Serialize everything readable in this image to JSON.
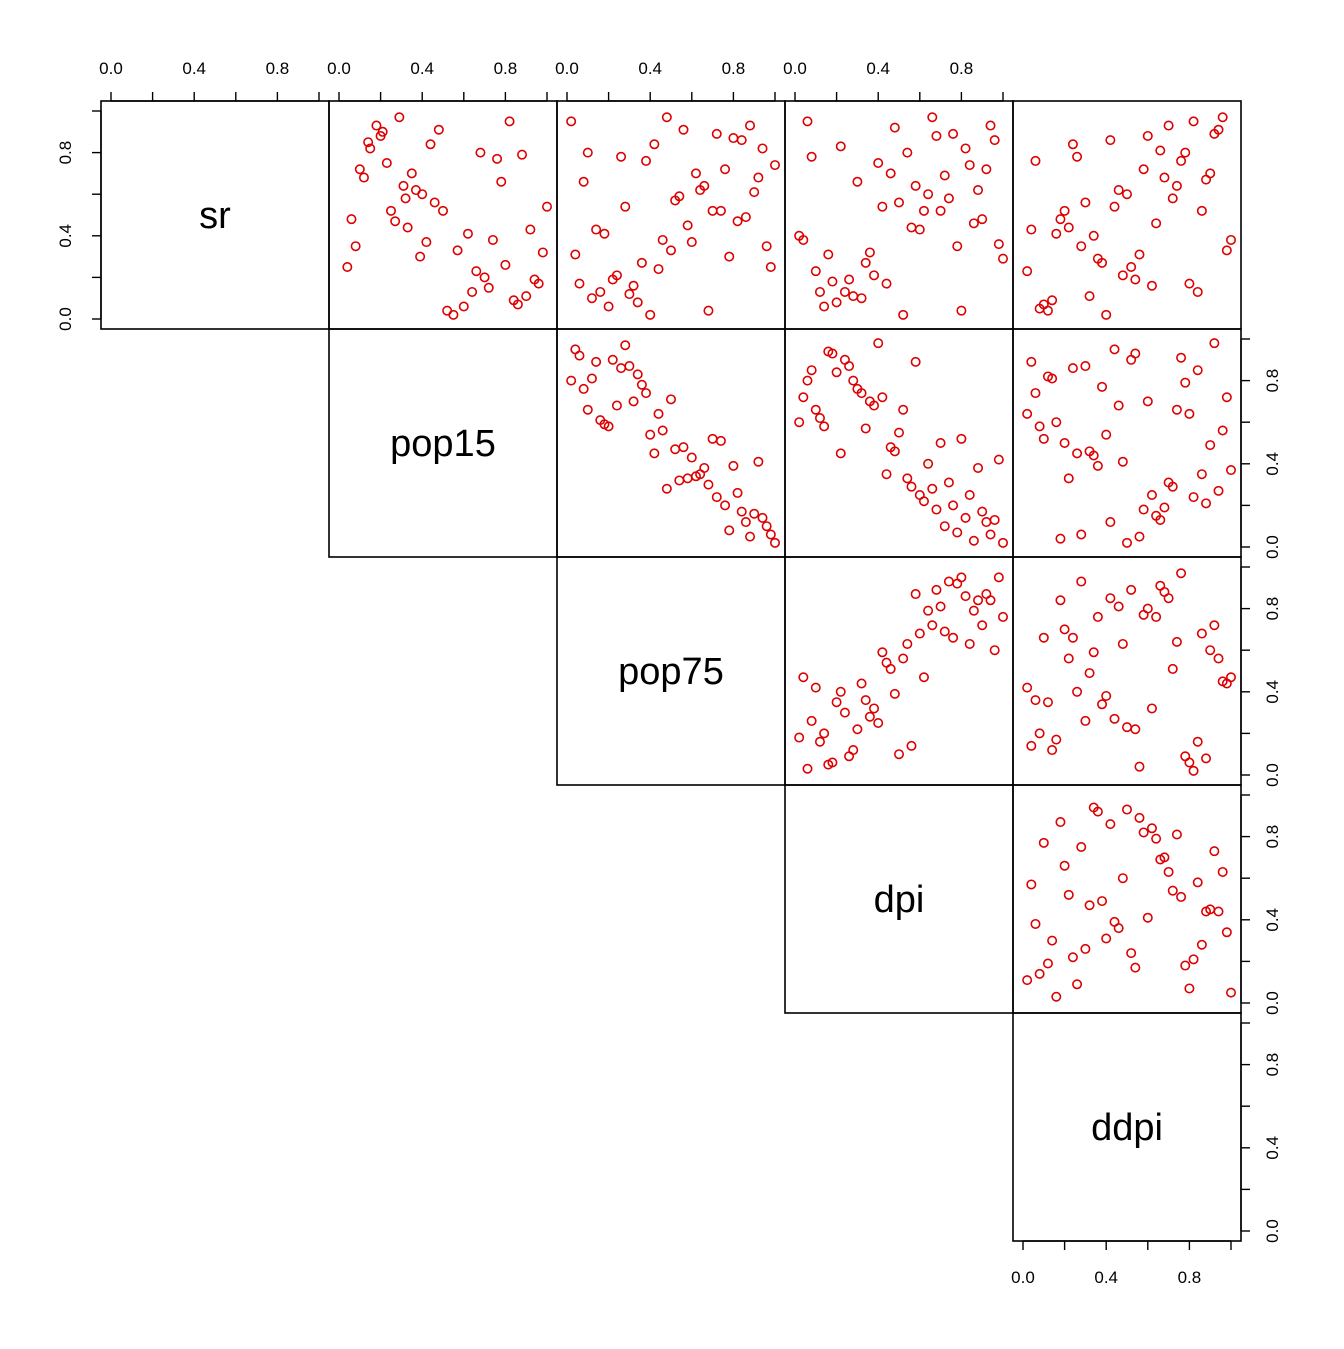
{
  "chart_data": {
    "type": "scatter",
    "kind": "pairs-matrix-upper",
    "variables": [
      "sr",
      "pop15",
      "pop75",
      "dpi",
      "ddpi"
    ],
    "axis_range": [
      0,
      1
    ],
    "tick_values": [
      0.0,
      0.4,
      0.8
    ],
    "tick_labels": [
      "0.0",
      "0.4",
      "0.8"
    ],
    "grid": false,
    "legend": "none",
    "point_color": "#dd0000",
    "panels": [
      {
        "x_var": "pop15",
        "y_var": "sr",
        "x": [
          0.04,
          0.06,
          0.08,
          0.1,
          0.12,
          0.14,
          0.15,
          0.18,
          0.2,
          0.21,
          0.23,
          0.25,
          0.27,
          0.29,
          0.31,
          0.32,
          0.33,
          0.35,
          0.37,
          0.39,
          0.4,
          0.42,
          0.44,
          0.46,
          0.48,
          0.5,
          0.52,
          0.55,
          0.57,
          0.6,
          0.62,
          0.64,
          0.66,
          0.68,
          0.7,
          0.72,
          0.74,
          0.76,
          0.78,
          0.8,
          0.82,
          0.84,
          0.86,
          0.88,
          0.9,
          0.92,
          0.94,
          0.96,
          0.98,
          1.0
        ],
        "y": [
          0.25,
          0.48,
          0.35,
          0.72,
          0.68,
          0.85,
          0.82,
          0.93,
          0.88,
          0.9,
          0.75,
          0.52,
          0.47,
          0.97,
          0.64,
          0.58,
          0.44,
          0.7,
          0.62,
          0.3,
          0.6,
          0.37,
          0.84,
          0.56,
          0.91,
          0.52,
          0.04,
          0.02,
          0.33,
          0.06,
          0.41,
          0.13,
          0.23,
          0.8,
          0.2,
          0.15,
          0.38,
          0.77,
          0.66,
          0.26,
          0.95,
          0.09,
          0.07,
          0.79,
          0.11,
          0.43,
          0.19,
          0.17,
          0.32,
          0.54
        ]
      },
      {
        "x_var": "pop75",
        "y_var": "sr",
        "x": [
          0.02,
          0.04,
          0.06,
          0.08,
          0.1,
          0.12,
          0.14,
          0.16,
          0.18,
          0.2,
          0.22,
          0.24,
          0.26,
          0.28,
          0.3,
          0.32,
          0.34,
          0.36,
          0.38,
          0.4,
          0.42,
          0.44,
          0.46,
          0.48,
          0.5,
          0.52,
          0.54,
          0.56,
          0.58,
          0.6,
          0.62,
          0.64,
          0.66,
          0.68,
          0.7,
          0.72,
          0.74,
          0.76,
          0.78,
          0.8,
          0.82,
          0.84,
          0.86,
          0.88,
          0.9,
          0.92,
          0.94,
          0.96,
          0.98,
          1.0
        ],
        "y": [
          0.95,
          0.31,
          0.17,
          0.66,
          0.8,
          0.1,
          0.43,
          0.13,
          0.41,
          0.06,
          0.19,
          0.21,
          0.78,
          0.54,
          0.12,
          0.16,
          0.08,
          0.27,
          0.76,
          0.02,
          0.84,
          0.24,
          0.38,
          0.97,
          0.33,
          0.57,
          0.59,
          0.91,
          0.45,
          0.37,
          0.7,
          0.62,
          0.64,
          0.04,
          0.52,
          0.89,
          0.52,
          0.72,
          0.3,
          0.87,
          0.47,
          0.86,
          0.49,
          0.93,
          0.61,
          0.68,
          0.82,
          0.35,
          0.25,
          0.74
        ]
      },
      {
        "x_var": "dpi",
        "y_var": "sr",
        "x": [
          0.02,
          0.04,
          0.06,
          0.08,
          0.1,
          0.12,
          0.14,
          0.16,
          0.18,
          0.2,
          0.22,
          0.24,
          0.26,
          0.28,
          0.3,
          0.32,
          0.34,
          0.36,
          0.38,
          0.4,
          0.42,
          0.44,
          0.46,
          0.48,
          0.5,
          0.52,
          0.54,
          0.56,
          0.58,
          0.6,
          0.62,
          0.64,
          0.66,
          0.68,
          0.7,
          0.72,
          0.74,
          0.76,
          0.78,
          0.8,
          0.82,
          0.84,
          0.86,
          0.88,
          0.9,
          0.92,
          0.94,
          0.96,
          0.98,
          1.0
        ],
        "y": [
          0.4,
          0.38,
          0.95,
          0.78,
          0.23,
          0.13,
          0.06,
          0.31,
          0.18,
          0.08,
          0.83,
          0.13,
          0.19,
          0.11,
          0.66,
          0.1,
          0.27,
          0.32,
          0.21,
          0.75,
          0.54,
          0.17,
          0.7,
          0.92,
          0.56,
          0.02,
          0.8,
          0.44,
          0.64,
          0.43,
          0.52,
          0.6,
          0.97,
          0.88,
          0.52,
          0.69,
          0.58,
          0.89,
          0.35,
          0.04,
          0.82,
          0.74,
          0.46,
          0.62,
          0.48,
          0.72,
          0.93,
          0.86,
          0.36,
          0.29
        ]
      },
      {
        "x_var": "ddpi",
        "y_var": "sr",
        "x": [
          0.02,
          0.04,
          0.06,
          0.08,
          0.1,
          0.12,
          0.14,
          0.16,
          0.18,
          0.2,
          0.22,
          0.24,
          0.26,
          0.28,
          0.3,
          0.32,
          0.34,
          0.36,
          0.38,
          0.4,
          0.42,
          0.44,
          0.46,
          0.48,
          0.5,
          0.52,
          0.54,
          0.56,
          0.58,
          0.6,
          0.62,
          0.64,
          0.66,
          0.68,
          0.7,
          0.72,
          0.74,
          0.76,
          0.78,
          0.8,
          0.82,
          0.84,
          0.86,
          0.88,
          0.9,
          0.92,
          0.94,
          0.96,
          0.98,
          1.0
        ],
        "y": [
          0.23,
          0.43,
          0.76,
          0.05,
          0.07,
          0.04,
          0.09,
          0.41,
          0.48,
          0.52,
          0.44,
          0.84,
          0.78,
          0.35,
          0.56,
          0.11,
          0.4,
          0.29,
          0.27,
          0.02,
          0.86,
          0.54,
          0.62,
          0.21,
          0.6,
          0.25,
          0.19,
          0.31,
          0.72,
          0.88,
          0.16,
          0.46,
          0.81,
          0.68,
          0.93,
          0.58,
          0.64,
          0.76,
          0.8,
          0.17,
          0.95,
          0.13,
          0.52,
          0.67,
          0.7,
          0.89,
          0.91,
          0.97,
          0.33,
          0.38
        ]
      },
      {
        "x_var": "pop75",
        "y_var": "pop15",
        "x": [
          0.02,
          0.04,
          0.06,
          0.08,
          0.1,
          0.12,
          0.14,
          0.16,
          0.18,
          0.2,
          0.22,
          0.24,
          0.26,
          0.28,
          0.3,
          0.32,
          0.34,
          0.36,
          0.38,
          0.4,
          0.42,
          0.44,
          0.46,
          0.48,
          0.5,
          0.52,
          0.54,
          0.56,
          0.58,
          0.6,
          0.62,
          0.64,
          0.66,
          0.68,
          0.7,
          0.72,
          0.74,
          0.76,
          0.78,
          0.8,
          0.82,
          0.84,
          0.86,
          0.88,
          0.9,
          0.92,
          0.94,
          0.96,
          0.98,
          1.0
        ],
        "y": [
          0.8,
          0.95,
          0.92,
          0.76,
          0.66,
          0.81,
          0.89,
          0.61,
          0.59,
          0.58,
          0.9,
          0.68,
          0.86,
          0.97,
          0.87,
          0.7,
          0.83,
          0.78,
          0.74,
          0.54,
          0.45,
          0.64,
          0.56,
          0.28,
          0.71,
          0.47,
          0.32,
          0.48,
          0.33,
          0.43,
          0.34,
          0.35,
          0.38,
          0.3,
          0.52,
          0.24,
          0.51,
          0.2,
          0.08,
          0.39,
          0.26,
          0.17,
          0.12,
          0.05,
          0.16,
          0.41,
          0.14,
          0.1,
          0.06,
          0.02
        ]
      },
      {
        "x_var": "dpi",
        "y_var": "pop15",
        "x": [
          0.02,
          0.04,
          0.06,
          0.08,
          0.1,
          0.12,
          0.14,
          0.16,
          0.18,
          0.2,
          0.22,
          0.24,
          0.26,
          0.28,
          0.3,
          0.32,
          0.34,
          0.36,
          0.38,
          0.4,
          0.42,
          0.44,
          0.46,
          0.48,
          0.5,
          0.52,
          0.54,
          0.56,
          0.58,
          0.6,
          0.62,
          0.64,
          0.66,
          0.68,
          0.7,
          0.72,
          0.74,
          0.76,
          0.78,
          0.8,
          0.82,
          0.84,
          0.86,
          0.88,
          0.9,
          0.92,
          0.94,
          0.96,
          0.98,
          1.0
        ],
        "y": [
          0.6,
          0.72,
          0.8,
          0.85,
          0.66,
          0.62,
          0.58,
          0.94,
          0.93,
          0.84,
          0.45,
          0.9,
          0.87,
          0.8,
          0.76,
          0.74,
          0.57,
          0.7,
          0.68,
          0.98,
          0.72,
          0.35,
          0.48,
          0.46,
          0.55,
          0.66,
          0.33,
          0.29,
          0.89,
          0.25,
          0.22,
          0.4,
          0.28,
          0.18,
          0.5,
          0.1,
          0.31,
          0.2,
          0.07,
          0.52,
          0.14,
          0.25,
          0.03,
          0.38,
          0.17,
          0.12,
          0.06,
          0.13,
          0.42,
          0.02
        ]
      },
      {
        "x_var": "ddpi",
        "y_var": "pop15",
        "x": [
          0.02,
          0.04,
          0.06,
          0.08,
          0.1,
          0.12,
          0.14,
          0.16,
          0.18,
          0.2,
          0.22,
          0.24,
          0.26,
          0.28,
          0.3,
          0.32,
          0.34,
          0.36,
          0.38,
          0.4,
          0.42,
          0.44,
          0.46,
          0.48,
          0.5,
          0.52,
          0.54,
          0.56,
          0.58,
          0.6,
          0.62,
          0.64,
          0.66,
          0.68,
          0.7,
          0.72,
          0.74,
          0.76,
          0.78,
          0.8,
          0.82,
          0.84,
          0.86,
          0.88,
          0.9,
          0.92,
          0.94,
          0.96,
          0.98,
          1.0
        ],
        "y": [
          0.64,
          0.89,
          0.74,
          0.58,
          0.52,
          0.82,
          0.81,
          0.6,
          0.04,
          0.5,
          0.33,
          0.86,
          0.45,
          0.06,
          0.87,
          0.46,
          0.44,
          0.39,
          0.77,
          0.54,
          0.12,
          0.95,
          0.68,
          0.41,
          0.02,
          0.9,
          0.93,
          0.05,
          0.18,
          0.7,
          0.25,
          0.15,
          0.13,
          0.19,
          0.31,
          0.29,
          0.66,
          0.91,
          0.79,
          0.64,
          0.24,
          0.85,
          0.35,
          0.21,
          0.49,
          0.98,
          0.27,
          0.56,
          0.72,
          0.37
        ]
      },
      {
        "x_var": "dpi",
        "y_var": "pop75",
        "x": [
          0.02,
          0.04,
          0.06,
          0.08,
          0.1,
          0.12,
          0.14,
          0.16,
          0.18,
          0.2,
          0.22,
          0.24,
          0.26,
          0.28,
          0.3,
          0.32,
          0.34,
          0.36,
          0.38,
          0.4,
          0.42,
          0.44,
          0.46,
          0.48,
          0.5,
          0.52,
          0.54,
          0.56,
          0.58,
          0.6,
          0.62,
          0.64,
          0.66,
          0.68,
          0.7,
          0.72,
          0.74,
          0.76,
          0.78,
          0.8,
          0.82,
          0.84,
          0.86,
          0.88,
          0.9,
          0.92,
          0.94,
          0.96,
          0.98,
          1.0
        ],
        "y": [
          0.18,
          0.47,
          0.03,
          0.26,
          0.42,
          0.16,
          0.2,
          0.05,
          0.06,
          0.35,
          0.4,
          0.3,
          0.09,
          0.12,
          0.22,
          0.44,
          0.36,
          0.28,
          0.32,
          0.25,
          0.59,
          0.54,
          0.51,
          0.39,
          0.1,
          0.56,
          0.63,
          0.14,
          0.87,
          0.68,
          0.47,
          0.79,
          0.72,
          0.89,
          0.81,
          0.69,
          0.93,
          0.66,
          0.92,
          0.95,
          0.86,
          0.63,
          0.79,
          0.84,
          0.72,
          0.87,
          0.84,
          0.6,
          0.95,
          0.76
        ]
      },
      {
        "x_var": "ddpi",
        "y_var": "pop75",
        "x": [
          0.02,
          0.04,
          0.06,
          0.08,
          0.1,
          0.12,
          0.14,
          0.16,
          0.18,
          0.2,
          0.22,
          0.24,
          0.26,
          0.28,
          0.3,
          0.32,
          0.34,
          0.36,
          0.38,
          0.4,
          0.42,
          0.44,
          0.46,
          0.48,
          0.5,
          0.52,
          0.54,
          0.56,
          0.58,
          0.6,
          0.62,
          0.64,
          0.66,
          0.68,
          0.7,
          0.72,
          0.74,
          0.76,
          0.78,
          0.8,
          0.82,
          0.84,
          0.86,
          0.88,
          0.9,
          0.92,
          0.94,
          0.96,
          0.98,
          1.0
        ],
        "y": [
          0.42,
          0.14,
          0.36,
          0.2,
          0.66,
          0.35,
          0.12,
          0.17,
          0.84,
          0.7,
          0.56,
          0.66,
          0.4,
          0.93,
          0.26,
          0.49,
          0.59,
          0.76,
          0.34,
          0.38,
          0.85,
          0.27,
          0.81,
          0.63,
          0.23,
          0.89,
          0.22,
          0.04,
          0.77,
          0.8,
          0.32,
          0.76,
          0.91,
          0.88,
          0.85,
          0.51,
          0.64,
          0.97,
          0.09,
          0.06,
          0.02,
          0.16,
          0.68,
          0.08,
          0.6,
          0.72,
          0.56,
          0.45,
          0.44,
          0.47
        ]
      },
      {
        "x_var": "ddpi",
        "y_var": "dpi",
        "x": [
          0.02,
          0.04,
          0.06,
          0.08,
          0.1,
          0.12,
          0.14,
          0.16,
          0.18,
          0.2,
          0.22,
          0.24,
          0.26,
          0.28,
          0.3,
          0.32,
          0.34,
          0.36,
          0.38,
          0.4,
          0.42,
          0.44,
          0.46,
          0.48,
          0.5,
          0.52,
          0.54,
          0.56,
          0.58,
          0.6,
          0.62,
          0.64,
          0.66,
          0.68,
          0.7,
          0.72,
          0.74,
          0.76,
          0.78,
          0.8,
          0.82,
          0.84,
          0.86,
          0.88,
          0.9,
          0.92,
          0.94,
          0.96,
          0.98,
          1.0
        ],
        "y": [
          0.11,
          0.57,
          0.38,
          0.14,
          0.77,
          0.19,
          0.3,
          0.03,
          0.87,
          0.66,
          0.52,
          0.22,
          0.09,
          0.75,
          0.26,
          0.47,
          0.94,
          0.92,
          0.49,
          0.31,
          0.86,
          0.39,
          0.36,
          0.6,
          0.93,
          0.24,
          0.17,
          0.89,
          0.82,
          0.41,
          0.84,
          0.79,
          0.69,
          0.7,
          0.63,
          0.54,
          0.81,
          0.51,
          0.18,
          0.07,
          0.21,
          0.58,
          0.28,
          0.44,
          0.45,
          0.73,
          0.44,
          0.63,
          0.34,
          0.05
        ]
      }
    ]
  }
}
